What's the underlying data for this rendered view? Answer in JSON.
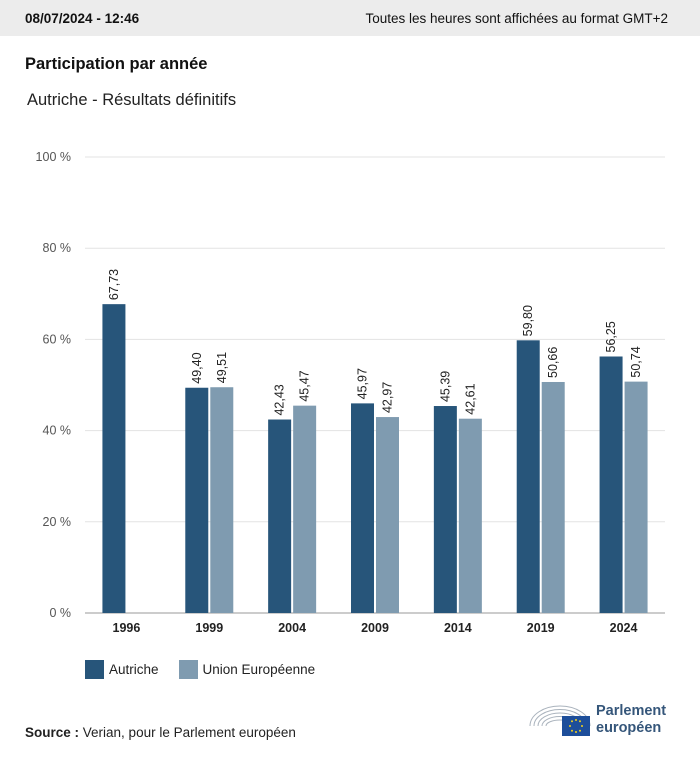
{
  "header": {
    "timestamp": "08/07/2024 - 12:46",
    "timezone_note": "Toutes les heures sont affichées au format GMT+2"
  },
  "title": "Participation par année",
  "subtitle": "Autriche - Résultats définitifs",
  "chart_data": {
    "type": "bar",
    "categories": [
      "1996",
      "1999",
      "2004",
      "2009",
      "2014",
      "2019",
      "2024"
    ],
    "series": [
      {
        "name": "Autriche",
        "color": "#27557a",
        "values": [
          67.73,
          49.4,
          42.43,
          45.97,
          45.39,
          59.8,
          56.25
        ]
      },
      {
        "name": "Union Européenne",
        "color": "#7f9bb0",
        "values": [
          null,
          49.51,
          45.47,
          42.97,
          42.61,
          50.66,
          50.74
        ]
      }
    ],
    "data_labels": [
      [
        "67,73",
        "49,40",
        "42,43",
        "45,97",
        "45,39",
        "59,80",
        "56,25"
      ],
      [
        null,
        "49,51",
        "45,47",
        "42,97",
        "42,61",
        "50,66",
        "50,74"
      ]
    ],
    "y_ticks": [
      "0 %",
      "20 %",
      "40 %",
      "60 %",
      "80 %",
      "100 %"
    ],
    "ylim": [
      0,
      100
    ],
    "grid": true,
    "legend_position": "bottom-left"
  },
  "source": {
    "label": "Source :",
    "text": "Verian, pour le Parlement européen"
  },
  "logo": {
    "line1": "Parlement",
    "line2": "européen"
  }
}
